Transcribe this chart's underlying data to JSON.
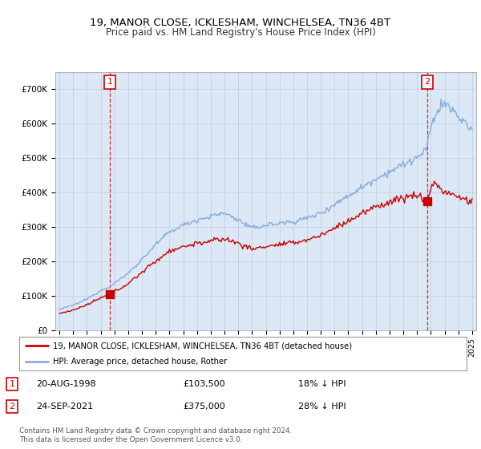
{
  "title_line1": "19, MANOR CLOSE, ICKLESHAM, WINCHELSEA, TN36 4BT",
  "title_line2": "Price paid vs. HM Land Registry's House Price Index (HPI)",
  "sale1_price": 103500,
  "sale2_price": 375000,
  "legend_line1": "19, MANOR CLOSE, ICKLESHAM, WINCHELSEA, TN36 4BT (detached house)",
  "legend_line2": "HPI: Average price, detached house, Rother",
  "footer": "Contains HM Land Registry data © Crown copyright and database right 2024.\nThis data is licensed under the Open Government Licence v3.0.",
  "price_line_color": "#cc0000",
  "hpi_line_color": "#88aadd",
  "plot_bg_color": "#dce8f5",
  "background_color": "#ffffff",
  "grid_color": "#bbccdd",
  "ylim_max": 750000,
  "yticks": [
    0,
    100000,
    200000,
    300000,
    400000,
    500000,
    600000,
    700000
  ],
  "ytick_labels": [
    "£0",
    "£100K",
    "£200K",
    "£300K",
    "£400K",
    "£500K",
    "£600K",
    "£700K"
  ]
}
